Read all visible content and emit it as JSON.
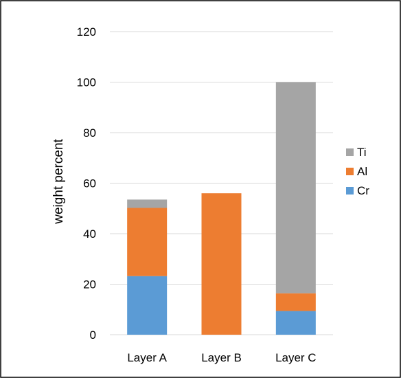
{
  "chart_data": {
    "type": "bar",
    "stacked": true,
    "categories": [
      "Layer A",
      "Layer B",
      "Layer C"
    ],
    "series": [
      {
        "name": "Cr",
        "color": "#5b9bd5",
        "values": [
          23.2,
          0,
          9.4
        ]
      },
      {
        "name": "Al",
        "color": "#ed7d31",
        "values": [
          27.0,
          56.0,
          7.0
        ]
      },
      {
        "name": "Ti",
        "color": "#a5a5a5",
        "values": [
          3.3,
          0,
          83.6
        ]
      }
    ],
    "title": "",
    "xlabel": "",
    "ylabel": "weight percent",
    "ylim": [
      0,
      120
    ],
    "yticks": [
      0,
      20,
      40,
      60,
      80,
      100,
      120
    ],
    "grid": true,
    "legend_position": "right"
  }
}
